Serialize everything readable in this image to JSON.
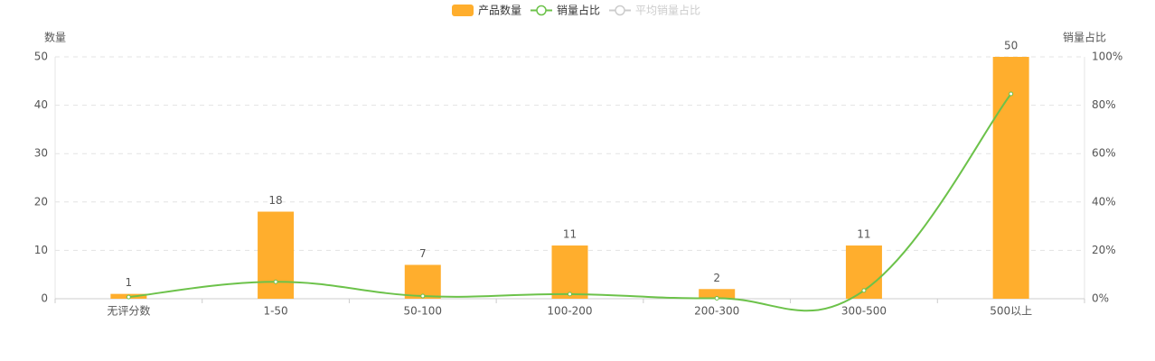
{
  "chart_data": {
    "type": "bar",
    "categories": [
      "无评分数",
      "1-50",
      "50-100",
      "100-200",
      "200-300",
      "300-500",
      "500以上"
    ],
    "series": [
      {
        "name": "产品数量",
        "type": "bar",
        "color": "#ffae2d",
        "values": [
          1,
          18,
          7,
          11,
          2,
          11,
          50
        ]
      },
      {
        "name": "销量占比",
        "type": "line",
        "axis": "y2",
        "smooth": true,
        "color": "#6cc24a",
        "values": [
          0.7,
          7,
          1.1,
          1.9,
          0.2,
          3.4,
          84.7
        ]
      },
      {
        "name": "平均销量占比",
        "type": "line",
        "axis": "y2",
        "hidden": true,
        "color": "#cccccc"
      }
    ],
    "ylabel": "数量",
    "y2label": "销量占比",
    "ylim": [
      0,
      50
    ],
    "yticks": [
      0,
      10,
      20,
      30,
      40,
      50
    ],
    "y2lim": [
      0,
      100
    ],
    "y2ticks": [
      {
        "value": 0,
        "label": "0%"
      },
      {
        "value": 20,
        "label": "20%"
      },
      {
        "value": 40,
        "label": "40%"
      },
      {
        "value": 60,
        "label": "60%"
      },
      {
        "value": 80,
        "label": "80%"
      },
      {
        "value": 100,
        "label": "100%"
      }
    ],
    "grid": true
  }
}
